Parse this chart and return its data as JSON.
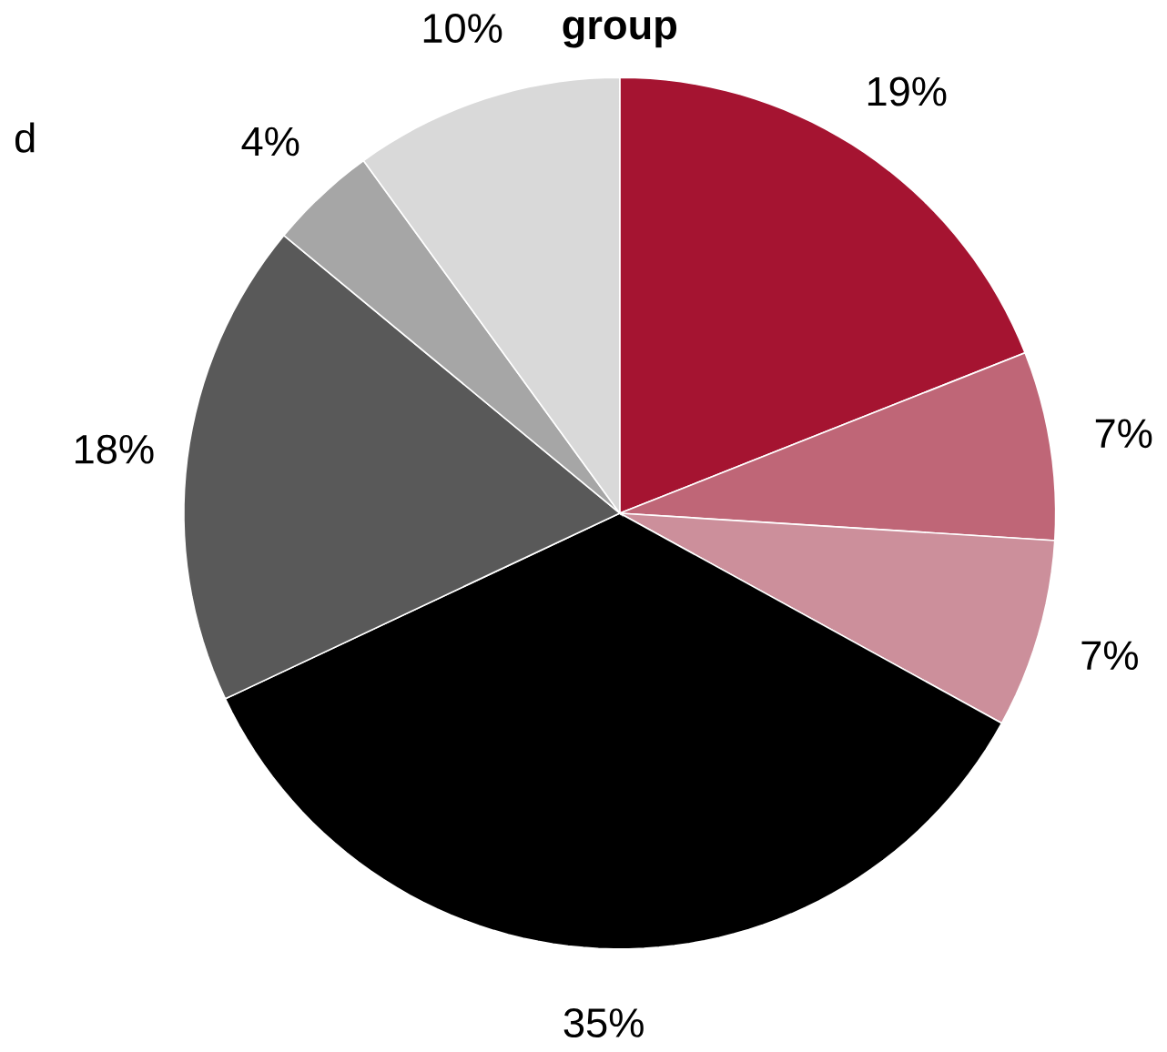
{
  "chart_data": {
    "type": "pie",
    "title": "group",
    "categories": [
      null,
      null,
      null,
      null,
      null,
      null,
      null
    ],
    "values": [
      19,
      7,
      7,
      35,
      18,
      4,
      10
    ],
    "value_labels": [
      "19%",
      "7%",
      "7%",
      "35%",
      "18%",
      "4%",
      "10%"
    ],
    "colors": [
      "#a51431",
      "#bf6677",
      "#cc8f9b",
      "#000000",
      "#595959",
      "#a6a6a6",
      "#d9d9d9"
    ],
    "annotations": [
      "d"
    ]
  }
}
